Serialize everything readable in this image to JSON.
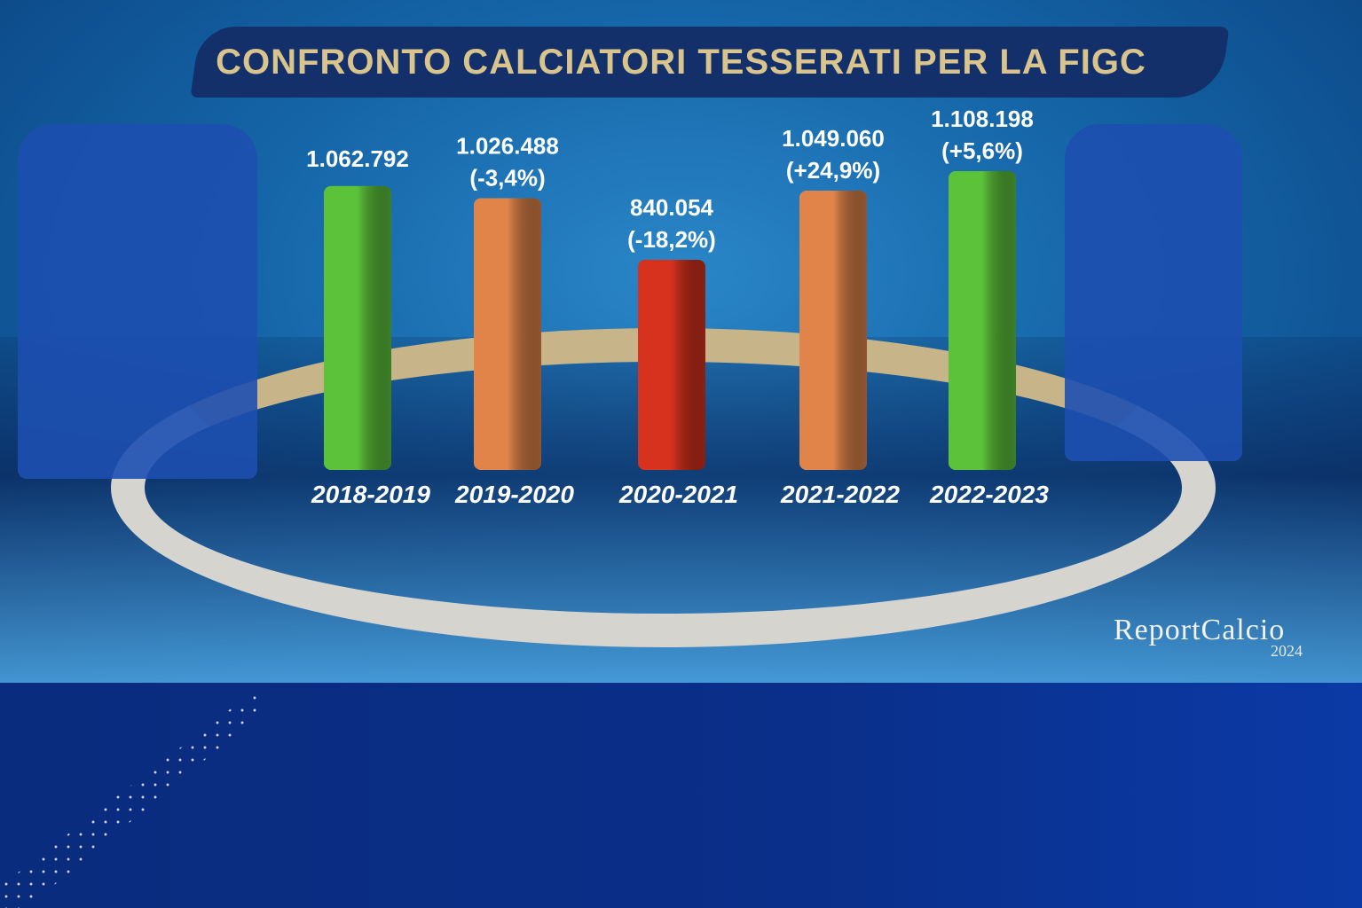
{
  "title": "CONFRONTO CALCIATORI TESSERATI PER LA FIGC",
  "chart_data": {
    "type": "bar",
    "title": "CONFRONTO CALCIATORI TESSERATI PER LA FIGC",
    "categories": [
      "2018-2019",
      "2019-2020",
      "2020-2021",
      "2021-2022",
      "2022-2023"
    ],
    "values": [
      1062792,
      1026488,
      840054,
      1049060,
      1108198
    ],
    "value_labels": [
      "1.062.792",
      "1.026.488",
      "840.054",
      "1.049.060",
      "1.108.198"
    ],
    "change_labels": [
      "",
      "(-3,4%)",
      "(-18,2%)",
      "(+24,9%)",
      "(+5,6%)"
    ],
    "bar_colors": [
      "#5cc23a",
      "#e0844a",
      "#d6321e",
      "#e0844a",
      "#5cc23a"
    ],
    "grid": false,
    "legend": "none"
  },
  "logo": {
    "name": "ReportCalcio",
    "year": "2024"
  }
}
